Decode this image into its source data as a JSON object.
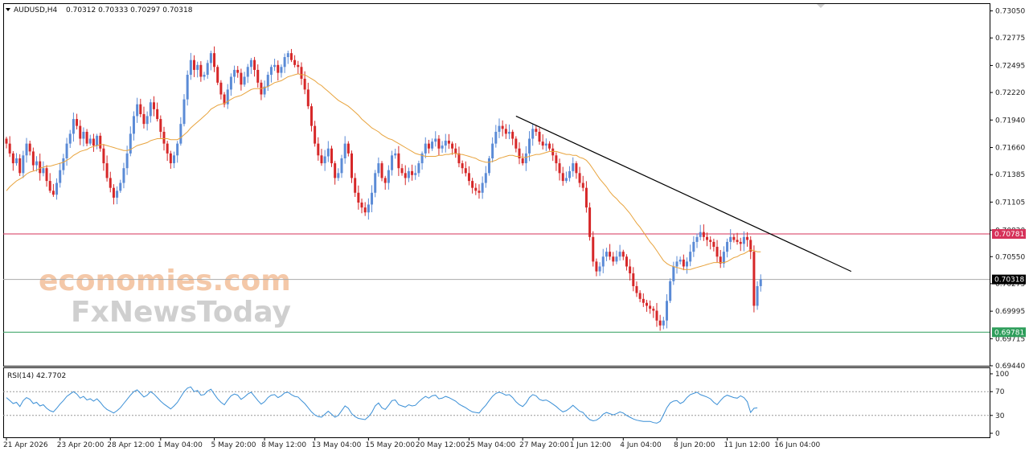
{
  "header": {
    "symbol": "AUDUSD,H4",
    "ohlc": "0.70312 0.70333 0.70297 0.70318"
  },
  "watermark": {
    "brand_a": "economies.com",
    "brand_b": "FxNewsToday"
  },
  "rsi": {
    "label": "RSI(14) 42.7702",
    "period": 14,
    "value": 42.7702,
    "ticks": [
      "100",
      "70",
      "30",
      "0"
    ],
    "levels": [
      70,
      30
    ]
  },
  "levels": {
    "resistance": "0.70781",
    "support": "0.69781",
    "current": "0.70318"
  },
  "colors": {
    "bull": "#5b8bd6",
    "bear": "#d62728",
    "ma": "#e8a33c",
    "resistance": "#d6325a",
    "support": "#2e9e5b",
    "current": "#aaaaaa",
    "trendline": "#000000",
    "rsi_line": "#3a8fd6"
  },
  "chart_data": {
    "type": "line",
    "title": "",
    "subtitle": "",
    "xlabel": "",
    "ylabel": "",
    "ylim": [
      0.6944,
      0.7312
    ],
    "grid": false,
    "legend": "none",
    "price_ticks": [
      "0.73050",
      "0.72775",
      "0.72495",
      "0.72220",
      "0.71940",
      "0.71660",
      "0.71385",
      "0.71105",
      "0.70820",
      "0.70550",
      "0.70275",
      "0.69995",
      "0.69715",
      "0.69440"
    ],
    "time_ticks": [
      {
        "label": "21 Apr 2026",
        "bar": 0
      },
      {
        "label": "23 Apr 20:00",
        "bar": 16
      },
      {
        "label": "28 Apr 12:00",
        "bar": 31
      },
      {
        "label": "1 May 04:00",
        "bar": 46
      },
      {
        "label": "5 May 20:00",
        "bar": 62
      },
      {
        "label": "8 May 12:00",
        "bar": 77
      },
      {
        "label": "13 May 04:00",
        "bar": 92
      },
      {
        "label": "15 May 20:00",
        "bar": 108
      },
      {
        "label": "20 May 12:00",
        "bar": 123
      },
      {
        "label": "25 May 04:00",
        "bar": 138
      },
      {
        "label": "27 May 20:00",
        "bar": 154
      },
      {
        "label": "1 Jun 12:00",
        "bar": 169
      },
      {
        "label": "4 Jun 04:00",
        "bar": 184
      },
      {
        "label": "8 Jun 20:00",
        "bar": 200
      },
      {
        "label": "11 Jun 12:00",
        "bar": 215
      },
      {
        "label": "16 Jun 04:00",
        "bar": 230
      }
    ],
    "series": [
      {
        "type": "candlestick",
        "close": [
          0.717,
          0.716,
          0.715,
          0.7155,
          0.714,
          0.7158,
          0.717,
          0.7162,
          0.7148,
          0.7152,
          0.714,
          0.7145,
          0.7132,
          0.7122,
          0.7118,
          0.713,
          0.7143,
          0.7155,
          0.717,
          0.718,
          0.7195,
          0.7188,
          0.7175,
          0.7182,
          0.717,
          0.7175,
          0.7168,
          0.7178,
          0.7165,
          0.715,
          0.7135,
          0.7125,
          0.7115,
          0.7122,
          0.713,
          0.7145,
          0.716,
          0.718,
          0.7198,
          0.721,
          0.72,
          0.719,
          0.7198,
          0.7212,
          0.7205,
          0.7195,
          0.7182,
          0.717,
          0.716,
          0.715,
          0.7158,
          0.717,
          0.719,
          0.7215,
          0.724,
          0.7255,
          0.7245,
          0.725,
          0.7238,
          0.724,
          0.7252,
          0.7262,
          0.7248,
          0.7232,
          0.722,
          0.721,
          0.7225,
          0.7238,
          0.7245,
          0.7242,
          0.723,
          0.7238,
          0.7248,
          0.7255,
          0.7245,
          0.7232,
          0.722,
          0.7228,
          0.724,
          0.7248,
          0.725,
          0.7242,
          0.7248,
          0.7258,
          0.7262,
          0.7255,
          0.725,
          0.7248,
          0.7236,
          0.7225,
          0.7208,
          0.7188,
          0.717,
          0.7158,
          0.715,
          0.7157,
          0.7165,
          0.715,
          0.7135,
          0.714,
          0.7155,
          0.717,
          0.716,
          0.7135,
          0.712,
          0.711,
          0.7105,
          0.71,
          0.7108,
          0.712,
          0.714,
          0.715,
          0.7135,
          0.713,
          0.7143,
          0.7158,
          0.716,
          0.7145,
          0.714,
          0.7135,
          0.7142,
          0.7138,
          0.714,
          0.715,
          0.716,
          0.717,
          0.7165,
          0.7172,
          0.7175,
          0.7165,
          0.7168,
          0.7173,
          0.717,
          0.7165,
          0.716,
          0.715,
          0.7145,
          0.714,
          0.7132,
          0.7125,
          0.7122,
          0.712,
          0.713,
          0.714,
          0.7155,
          0.717,
          0.7182,
          0.7188,
          0.7185,
          0.718,
          0.7182,
          0.7175,
          0.7165,
          0.7155,
          0.715,
          0.716,
          0.7175,
          0.7185,
          0.7182,
          0.7172,
          0.7168,
          0.717,
          0.7165,
          0.7158,
          0.715,
          0.714,
          0.7132,
          0.7135,
          0.7142,
          0.715,
          0.714,
          0.713,
          0.7125,
          0.7105,
          0.7075,
          0.705,
          0.704,
          0.7045,
          0.7055,
          0.706,
          0.7055,
          0.705,
          0.7055,
          0.706,
          0.7055,
          0.7045,
          0.7038,
          0.7025,
          0.7018,
          0.7012,
          0.7008,
          0.7005,
          0.7002,
          0.7,
          0.699,
          0.6985,
          0.699,
          0.701,
          0.703,
          0.7045,
          0.705,
          0.7052,
          0.7045,
          0.705,
          0.706,
          0.707,
          0.7075,
          0.708,
          0.7075,
          0.7072,
          0.707,
          0.7065,
          0.7055,
          0.7048,
          0.706,
          0.707,
          0.7075,
          0.7072,
          0.707,
          0.7068,
          0.7075,
          0.7072,
          0.706,
          0.7005,
          0.7025,
          0.7032
        ]
      },
      {
        "type": "moving-average",
        "values": [
          0.7122,
          0.7126,
          0.7129,
          0.7132,
          0.7134,
          0.7136,
          0.7139,
          0.7141,
          0.7142,
          0.7143,
          0.7145,
          0.7146,
          0.7147,
          0.7147,
          0.7148,
          0.7149,
          0.715,
          0.7151,
          0.7153,
          0.7155,
          0.7158,
          0.716,
          0.7162,
          0.7163,
          0.7164,
          0.7166,
          0.7167,
          0.7168,
          0.7169,
          0.7169,
          0.7168,
          0.7167,
          0.7166,
          0.7165,
          0.7164,
          0.7163,
          0.7163,
          0.7164,
          0.7166,
          0.7168,
          0.7169,
          0.717,
          0.7171,
          0.7173,
          0.7174,
          0.7175,
          0.7175,
          0.7175,
          0.7175,
          0.7174,
          0.7174,
          0.7174,
          0.7176,
          0.7179,
          0.7182,
          0.7186,
          0.7189,
          0.7192,
          0.7195,
          0.7198,
          0.7201,
          0.7205,
          0.7207,
          0.7209,
          0.721,
          0.7211,
          0.7213,
          0.7215,
          0.7217,
          0.7218,
          0.7219,
          0.7221,
          0.7223,
          0.7225,
          0.7226,
          0.7226,
          0.7226,
          0.7227,
          0.7228,
          0.723,
          0.7232,
          0.7233,
          0.7234,
          0.7236,
          0.7238,
          0.7239,
          0.724,
          0.7241,
          0.724,
          0.724,
          0.7238,
          0.7236,
          0.7234,
          0.7231,
          0.7229,
          0.7226,
          0.7223,
          0.722,
          0.7217,
          0.7214,
          0.7212,
          0.721,
          0.7208,
          0.7205,
          0.7202,
          0.7199,
          0.7195,
          0.7192,
          0.7189,
          0.7186,
          0.7184,
          0.7182,
          0.7179,
          0.7177,
          0.7175,
          0.7174,
          0.7172,
          0.717,
          0.7168,
          0.7166,
          0.7164,
          0.7162,
          0.716,
          0.7159,
          0.7158,
          0.7157,
          0.7157,
          0.7157,
          0.7157,
          0.7158,
          0.7158,
          0.7159,
          0.7159,
          0.716,
          0.716,
          0.7159,
          0.7159,
          0.7158,
          0.7157,
          0.7156,
          0.7155,
          0.7153,
          0.7152,
          0.7151,
          0.7151,
          0.7152,
          0.7153,
          0.7155,
          0.7156,
          0.7157,
          0.7158,
          0.7158,
          0.7157,
          0.7157,
          0.7156,
          0.7156,
          0.7157,
          0.7158,
          0.7159,
          0.7159,
          0.716,
          0.7161,
          0.7162,
          0.7162,
          0.7162,
          0.7161,
          0.716,
          0.7159,
          0.7159,
          0.7158,
          0.7158,
          0.7156,
          0.7155,
          0.7153,
          0.7149,
          0.7144,
          0.7139,
          0.7134,
          0.713,
          0.7126,
          0.7121,
          0.7117,
          0.7114,
          0.711,
          0.7107,
          0.7103,
          0.7099,
          0.7094,
          0.7089,
          0.7085,
          0.708,
          0.7075,
          0.707,
          0.7066,
          0.7061,
          0.7056,
          0.7051,
          0.7048,
          0.7046,
          0.7045,
          0.7044,
          0.7043,
          0.7042,
          0.7042,
          0.7042,
          0.7043,
          0.7044,
          0.7045,
          0.7046,
          0.7047,
          0.7048,
          0.7049,
          0.7049,
          0.7049,
          0.7049,
          0.705,
          0.7052,
          0.7054,
          0.7055,
          0.7057,
          0.7058,
          0.706,
          0.7062,
          0.7061,
          0.706,
          0.706
        ]
      },
      {
        "type": "trendline",
        "points": [
          [
            152,
            0.7198
          ],
          [
            252,
            0.704
          ]
        ]
      },
      {
        "type": "rsi",
        "values": [
          60,
          55,
          50,
          52,
          45,
          55,
          60,
          57,
          50,
          52,
          46,
          48,
          42,
          38,
          36,
          42,
          49,
          55,
          62,
          66,
          70,
          66,
          59,
          62,
          56,
          58,
          54,
          58,
          52,
          45,
          40,
          37,
          34,
          38,
          43,
          50,
          57,
          64,
          70,
          73,
          67,
          61,
          64,
          70,
          66,
          60,
          54,
          49,
          45,
          41,
          46,
          52,
          61,
          70,
          76,
          78,
          70,
          72,
          64,
          65,
          71,
          74,
          66,
          58,
          52,
          48,
          56,
          63,
          66,
          64,
          57,
          61,
          66,
          69,
          62,
          55,
          49,
          53,
          60,
          64,
          65,
          60,
          63,
          68,
          69,
          65,
          62,
          61,
          55,
          50,
          43,
          36,
          31,
          28,
          27,
          32,
          37,
          32,
          27,
          30,
          38,
          46,
          42,
          33,
          28,
          25,
          24,
          23,
          28,
          35,
          46,
          51,
          43,
          40,
          47,
          55,
          56,
          48,
          46,
          44,
          48,
          46,
          47,
          53,
          58,
          62,
          59,
          63,
          64,
          58,
          59,
          62,
          60,
          57,
          54,
          49,
          46,
          43,
          39,
          36,
          35,
          34,
          41,
          47,
          55,
          62,
          67,
          69,
          67,
          64,
          65,
          60,
          53,
          48,
          45,
          51,
          60,
          65,
          63,
          57,
          55,
          56,
          53,
          49,
          45,
          40,
          36,
          38,
          42,
          47,
          42,
          37,
          35,
          28,
          23,
          21,
          22,
          26,
          32,
          35,
          33,
          31,
          33,
          36,
          34,
          30,
          27,
          24,
          22,
          21,
          20,
          20,
          20,
          18,
          17,
          20,
          31,
          43,
          51,
          54,
          55,
          50,
          53,
          60,
          65,
          67,
          69,
          65,
          63,
          61,
          58,
          52,
          48,
          55,
          61,
          64,
          62,
          60,
          59,
          63,
          60,
          53,
          35,
          42,
          42.77
        ]
      }
    ]
  }
}
